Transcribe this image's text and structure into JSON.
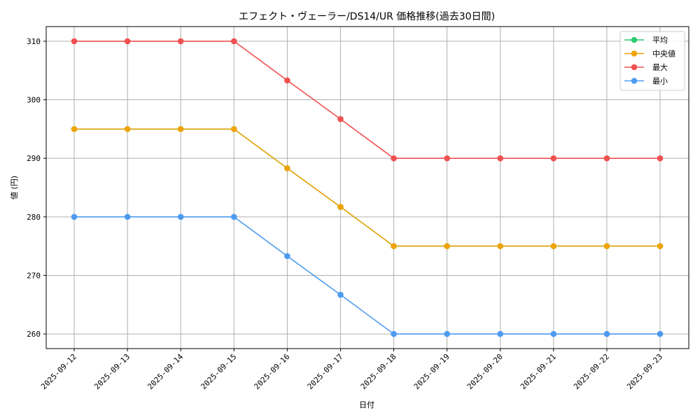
{
  "chart_data": {
    "type": "line",
    "title": "エフェクト・ヴェーラー/DS14/UR 価格推移(過去30日間)",
    "xlabel": "日付",
    "ylabel": "値 (円)",
    "categories": [
      "2025-09-12",
      "2025-09-13",
      "2025-09-14",
      "2025-09-15",
      "2025-09-16",
      "2025-09-17",
      "2025-09-18",
      "2025-09-19",
      "2025-09-20",
      "2025-09-21",
      "2025-09-22",
      "2025-09-23"
    ],
    "ylim": [
      257.5,
      312.5
    ],
    "yticks": [
      260,
      270,
      280,
      290,
      300,
      310
    ],
    "grid": true,
    "legend_position": "top-right",
    "series": [
      {
        "name": "平均",
        "color": "#2ecc71",
        "values": [
          295,
          295,
          295,
          295,
          288.3,
          281.7,
          275,
          275,
          275,
          275,
          275,
          275
        ]
      },
      {
        "name": "中央値",
        "color": "#f0a30a",
        "values": [
          295,
          295,
          295,
          295,
          288.3,
          281.7,
          275,
          275,
          275,
          275,
          275,
          275
        ]
      },
      {
        "name": "最大",
        "color": "#f05050",
        "values": [
          310,
          310,
          310,
          310,
          303.3,
          296.7,
          290,
          290,
          290,
          290,
          290,
          290
        ]
      },
      {
        "name": "最小",
        "color": "#4d9bf0",
        "values": [
          280,
          280,
          280,
          280,
          273.3,
          266.7,
          260,
          260,
          260,
          260,
          260,
          260
        ]
      }
    ]
  }
}
